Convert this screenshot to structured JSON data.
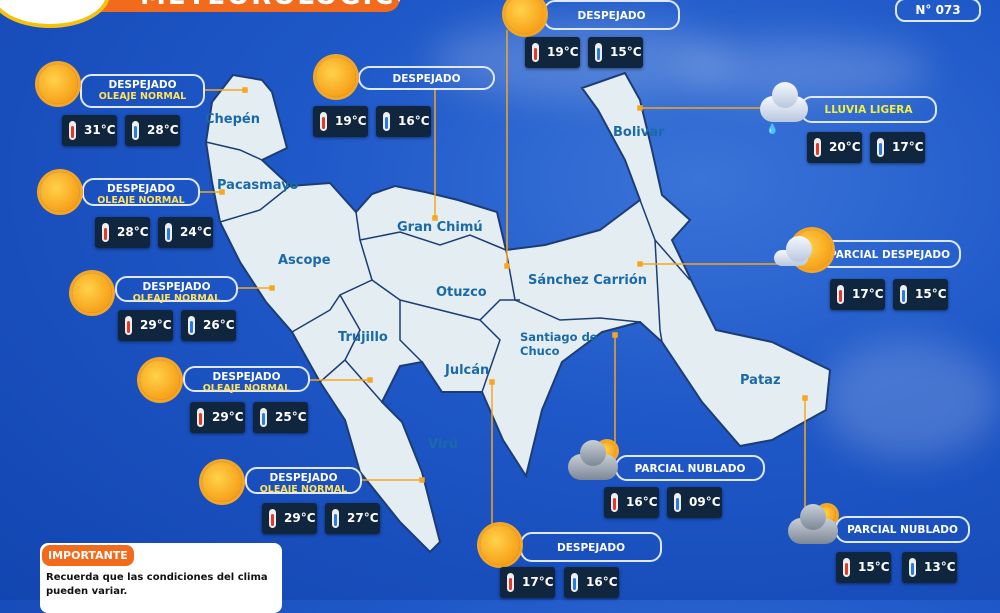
{
  "header": {
    "title": "METEOROLÓGICO",
    "number": "N° 073"
  },
  "important": {
    "tag": "IMPORTANTE",
    "text": "Recuerda que las condiciones del clima pueden variar."
  },
  "provinces": [
    "Chepén",
    "Pacasmayo",
    "Ascope",
    "Trujillo",
    "Virú",
    "Gran Chimú",
    "Otuzco",
    "Julcán",
    "Sánchez Carrión",
    "Santiago de Chuco",
    "Bolivar",
    "Pataz"
  ],
  "forecasts": [
    {
      "province": "Chepén",
      "condition": "DESPEJADO",
      "sea": "OLEAJE NORMAL",
      "icon": "sun",
      "max": "31°C",
      "min": "28°C"
    },
    {
      "province": "Pacasmayo",
      "condition": "DESPEJADO",
      "sea": "OLEAJE NORMAL",
      "icon": "sun",
      "max": "28°C",
      "min": "24°C"
    },
    {
      "province": "Ascope",
      "condition": "DESPEJADO",
      "sea": "OLEAJE NORMAL",
      "icon": "sun",
      "max": "29°C",
      "min": "26°C"
    },
    {
      "province": "Trujillo",
      "condition": "DESPEJADO",
      "sea": "OLEAJE NORMAL",
      "icon": "sun",
      "max": "29°C",
      "min": "25°C"
    },
    {
      "province": "Virú",
      "condition": "DESPEJADO",
      "sea": "OLEAJE NORMAL",
      "icon": "sun",
      "max": "29°C",
      "min": "27°C"
    },
    {
      "province": "Gran Chimú",
      "condition": "DESPEJADO",
      "icon": "sun",
      "max": "19°C",
      "min": "16°C"
    },
    {
      "province": "Otuzco",
      "condition": "DESPEJADO",
      "icon": "sun",
      "max": "19°C",
      "min": "15°C"
    },
    {
      "province": "Bolivar",
      "condition": "LLUVIA LIGERA",
      "icon": "rain-cloud",
      "max": "20°C",
      "min": "17°C"
    },
    {
      "province": "Sánchez Carrión",
      "condition": "PARCIAL DESPEJADO",
      "icon": "sun-cloud",
      "max": "17°C",
      "min": "15°C"
    },
    {
      "province": "Santiago de Chuco",
      "condition": "PARCIAL NUBLADO",
      "icon": "cloud-sun",
      "max": "16°C",
      "min": "09°C"
    },
    {
      "province": "Pataz",
      "condition": "PARCIAL NUBLADO",
      "icon": "cloud-sun",
      "max": "15°C",
      "min": "13°C"
    },
    {
      "province": "Julcán",
      "condition": "DESPEJADO",
      "icon": "sun",
      "max": "17°C",
      "min": "16°C"
    }
  ],
  "colors": {
    "background": "#1f58c8",
    "map": "#e4edf2",
    "accent": "#f26b1d",
    "province_label": "#1a6aa8",
    "sea_text": "#ffe25a"
  }
}
